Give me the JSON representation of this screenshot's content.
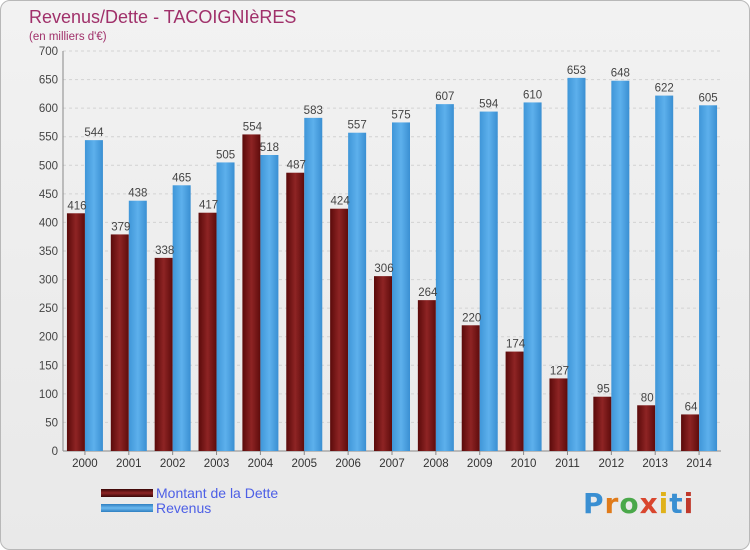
{
  "title": "Revenus/Dette - TACOIGNIèRES",
  "subtitle": "(en milliers d'€)",
  "logo": "Proxiti",
  "colors": {
    "dette": "#7a1515",
    "revenus": "#4da3e3",
    "title": "#a0306a",
    "legend_text": "#4d5fe6"
  },
  "chart_data": {
    "type": "bar",
    "categories": [
      "2000",
      "2001",
      "2002",
      "2003",
      "2004",
      "2005",
      "2006",
      "2007",
      "2008",
      "2009",
      "2010",
      "2011",
      "2012",
      "2013",
      "2014"
    ],
    "series": [
      {
        "name": "Montant de la Dette",
        "values": [
          416,
          379,
          338,
          417,
          554,
          487,
          424,
          306,
          264,
          220,
          174,
          127,
          95,
          80,
          64
        ]
      },
      {
        "name": "Revenus",
        "values": [
          544,
          438,
          465,
          505,
          518,
          583,
          557,
          575,
          607,
          594,
          610,
          653,
          648,
          622,
          605
        ]
      }
    ],
    "ylim": [
      0,
      700
    ],
    "yticks": [
      0,
      50,
      100,
      150,
      200,
      250,
      300,
      350,
      400,
      450,
      500,
      550,
      600,
      650,
      700
    ],
    "grid": true,
    "legend": "bottom-left"
  }
}
